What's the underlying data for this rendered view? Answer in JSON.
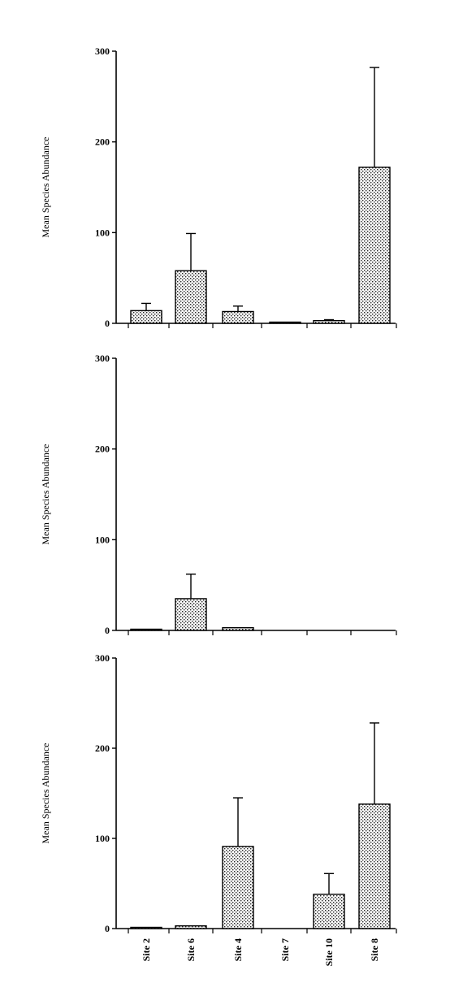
{
  "chart_data": [
    {
      "type": "bar",
      "title": "",
      "xlabel": "",
      "ylabel": "Mean Species Abundance",
      "ylim": [
        0,
        300
      ],
      "yticks": [
        "0",
        "100",
        "200",
        "300"
      ],
      "categories": [
        "Site 2",
        "Site 6",
        "Site 4",
        "Site 7",
        "Site 10",
        "Site 8"
      ],
      "values": [
        14,
        58,
        13,
        1,
        3,
        172
      ],
      "error_upper": [
        22,
        99,
        19,
        1,
        4,
        282
      ],
      "show_category_labels": false
    },
    {
      "type": "bar",
      "title": "",
      "xlabel": "",
      "ylabel": "Mean Species Abundance",
      "ylim": [
        0,
        300
      ],
      "yticks": [
        "0",
        "100",
        "200",
        "300"
      ],
      "categories": [
        "Site 2",
        "Site 6",
        "Site 4",
        "Site 7",
        "Site 10",
        "Site 8"
      ],
      "values": [
        1,
        35,
        3,
        0,
        0,
        0
      ],
      "error_upper": [
        1,
        62,
        3,
        0,
        0,
        0
      ],
      "show_category_labels": false
    },
    {
      "type": "bar",
      "title": "",
      "xlabel": "",
      "ylabel": "Mean Species Abundance",
      "ylim": [
        0,
        300
      ],
      "yticks": [
        "0",
        "100",
        "200",
        "300"
      ],
      "categories": [
        "Site 2",
        "Site 6",
        "Site 4",
        "Site 7",
        "Site 10",
        "Site 8"
      ],
      "values": [
        1,
        3,
        91,
        0,
        38,
        138
      ],
      "error_upper": [
        1,
        3,
        145,
        0,
        61,
        228
      ],
      "show_category_labels": true
    }
  ]
}
